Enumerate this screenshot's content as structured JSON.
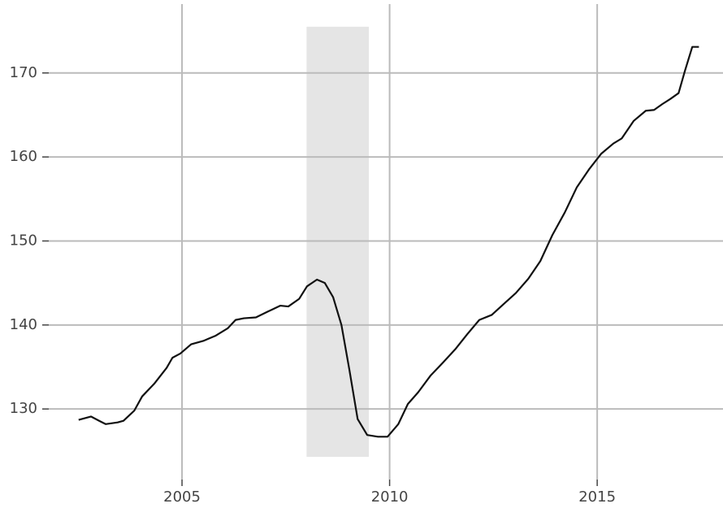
{
  "chart_data": {
    "type": "line",
    "x": [
      2002.51,
      2002.81,
      2003.0,
      2003.16,
      2003.45,
      2003.59,
      2003.85,
      2004.04,
      2004.33,
      2004.63,
      2004.77,
      2004.96,
      2005.22,
      2005.51,
      2005.8,
      2006.1,
      2006.29,
      2006.49,
      2006.78,
      2007.07,
      2007.37,
      2007.56,
      2007.82,
      2008.01,
      2008.25,
      2008.44,
      2008.64,
      2008.84,
      2009.03,
      2009.23,
      2009.46,
      2009.72,
      2009.95,
      2010.21,
      2010.44,
      2010.69,
      2010.99,
      2011.28,
      2011.58,
      2011.87,
      2012.16,
      2012.46,
      2012.75,
      2013.04,
      2013.34,
      2013.63,
      2013.92,
      2014.22,
      2014.51,
      2014.8,
      2015.1,
      2015.39,
      2015.59,
      2015.88,
      2016.17,
      2016.37,
      2016.57,
      2016.76,
      2016.96,
      2017.11,
      2017.29,
      2017.45
    ],
    "series": [
      {
        "color": "#111111",
        "values": [
          128.7,
          129.1,
          128.6,
          128.2,
          128.4,
          128.6,
          129.8,
          131.5,
          133.0,
          134.9,
          136.1,
          136.6,
          137.7,
          138.1,
          138.7,
          139.6,
          140.6,
          140.8,
          140.9,
          141.6,
          142.3,
          142.2,
          143.1,
          144.6,
          145.4,
          145.0,
          143.3,
          140.0,
          134.7,
          128.8,
          126.9,
          126.7,
          126.7,
          128.2,
          130.6,
          132.0,
          134.0,
          135.5,
          137.1,
          138.9,
          140.6,
          141.2,
          142.5,
          143.8,
          145.5,
          147.6,
          150.7,
          153.4,
          156.4,
          158.5,
          160.4,
          161.6,
          162.2,
          164.3,
          165.5,
          165.6,
          166.3,
          166.9,
          167.6,
          170.2,
          173.1,
          173.1
        ]
      }
    ],
    "shaded_region": {
      "x": [
        2008.0,
        2009.5
      ],
      "y": [
        124.3,
        175.5
      ],
      "color": "#e5e5e5"
    },
    "xlim": [
      2001.79,
      2018.03
    ],
    "xticks": [
      2005,
      2010,
      2015
    ],
    "ylim": [
      121.6,
      178.2
    ],
    "yticks": [
      130,
      140,
      150,
      160,
      170
    ],
    "grid": true
  }
}
